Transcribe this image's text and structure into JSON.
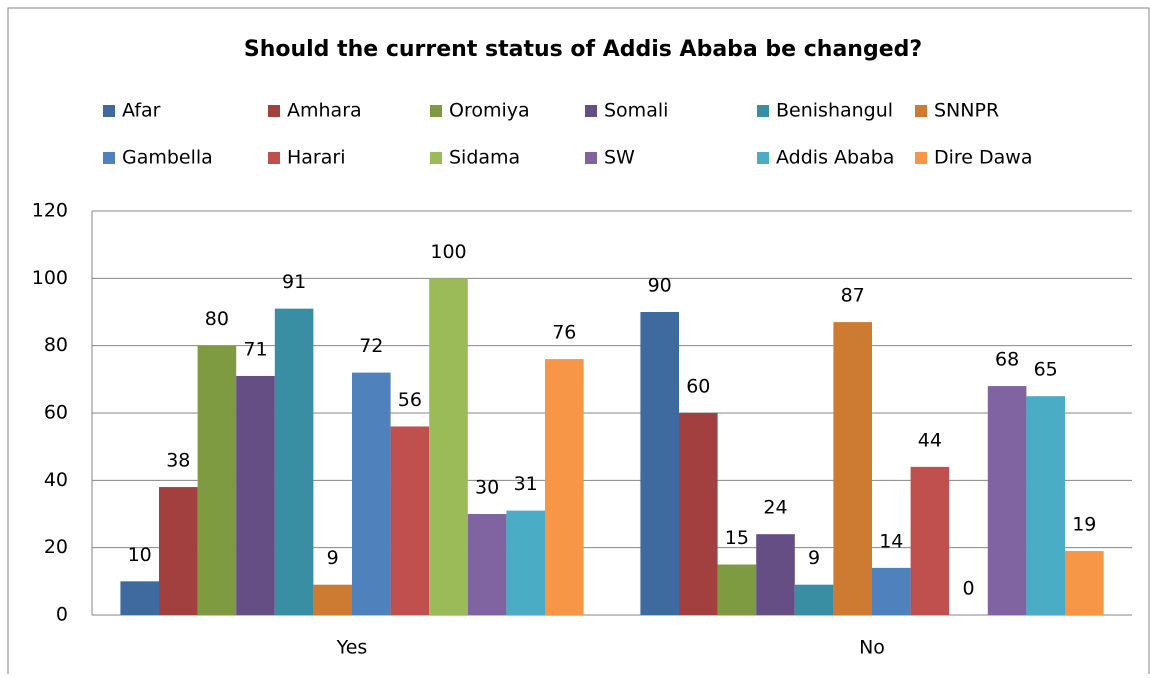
{
  "chart_data": {
    "type": "bar",
    "title": "Should the current status of Addis Ababa be changed?",
    "categories": [
      "Yes",
      "No"
    ],
    "series": [
      {
        "name": "Afar",
        "color": "#3f6a9f",
        "values": [
          10,
          90
        ]
      },
      {
        "name": "Amhara",
        "color": "#a1403e",
        "values": [
          38,
          60
        ]
      },
      {
        "name": "Oromiya",
        "color": "#7f9b42",
        "values": [
          80,
          15
        ]
      },
      {
        "name": "Somali",
        "color": "#644e84",
        "values": [
          71,
          24
        ]
      },
      {
        "name": "Benishangul",
        "color": "#398ea3",
        "values": [
          91,
          9
        ]
      },
      {
        "name": "SNNPR",
        "color": "#cd7b33",
        "values": [
          9,
          87
        ]
      },
      {
        "name": "Gambella",
        "color": "#4f81bd",
        "values": [
          72,
          14
        ]
      },
      {
        "name": "Harari",
        "color": "#c0504d",
        "values": [
          56,
          44
        ]
      },
      {
        "name": "Sidama",
        "color": "#9bbb59",
        "values": [
          100,
          0
        ]
      },
      {
        "name": "SW",
        "color": "#8064a2",
        "values": [
          30,
          68
        ]
      },
      {
        "name": "Addis Ababa",
        "color": "#4bacc6",
        "values": [
          31,
          65
        ]
      },
      {
        "name": "Dire Dawa",
        "color": "#f79646",
        "values": [
          76,
          19
        ]
      }
    ],
    "ylim": [
      0,
      120
    ],
    "yticks": [
      0,
      20,
      40,
      60,
      80,
      100,
      120
    ],
    "grid": true,
    "legend": "top"
  }
}
